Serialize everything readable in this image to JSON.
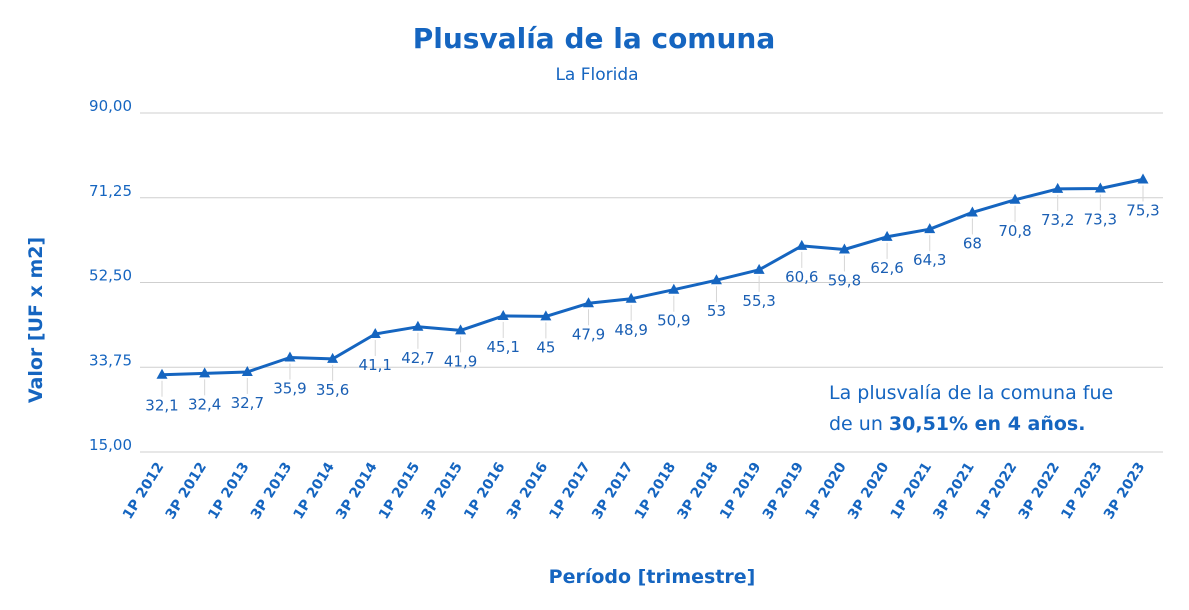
{
  "chart_data": {
    "type": "line",
    "title": "Plusvalía de la comuna",
    "subtitle": "La Florida",
    "xlabel": "Período [trimestre]",
    "ylabel": "Valor [UF x m2]",
    "ylim": [
      15,
      90
    ],
    "yticks": [
      "15,00",
      "33,75",
      "52,50",
      "71,25",
      "90,00"
    ],
    "ytick_values": [
      15,
      33.75,
      52.5,
      71.25,
      90
    ],
    "grid": true,
    "legend": "none",
    "categories": [
      "1P 2012",
      "3P 2012",
      "1P 2013",
      "3P 2013",
      "1P 2014",
      "3P 2014",
      "1P 2015",
      "3P 2015",
      "1P 2016",
      "3P 2016",
      "1P 2017",
      "3P 2017",
      "1P 2018",
      "3P 2018",
      "1P 2019",
      "3P 2019",
      "1P 2020",
      "3P 2020",
      "1P 2021",
      "3P 2021",
      "1P 2022",
      "3P 2022",
      "1P 2023",
      "3P 2023"
    ],
    "series": [
      {
        "values": [
          32.1,
          32.4,
          32.7,
          35.9,
          35.6,
          41.1,
          42.7,
          41.9,
          45.1,
          45,
          47.9,
          48.9,
          50.9,
          53,
          55.3,
          60.6,
          59.8,
          62.6,
          64.3,
          68,
          70.8,
          73.2,
          73.3,
          75.3
        ],
        "labels": [
          "32,1",
          "32,4",
          "32,7",
          "35,9",
          "35,6",
          "41,1",
          "42,7",
          "41,9",
          "45,1",
          "45",
          "47,9",
          "48,9",
          "50,9",
          "53",
          "55,3",
          "60,6",
          "59,8",
          "62,6",
          "64,3",
          "68",
          "70,8",
          "73,2",
          "73,3",
          "75,3"
        ],
        "color": "#1565c0",
        "marker": "triangle"
      }
    ],
    "annotation": {
      "line1": "La plusvalía de la comuna fue",
      "line2_prefix": "de un ",
      "line2_bold": "30,51% en 4 años."
    }
  }
}
